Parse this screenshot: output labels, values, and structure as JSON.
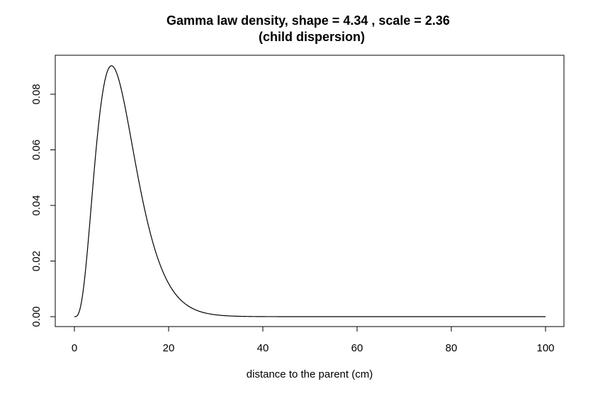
{
  "chart_data": {
    "type": "line",
    "title": "Gamma law density, shape =  4.34 , scale =  2.36",
    "subtitle": "(child dispersion)",
    "xlabel": "distance to the parent (cm)",
    "ylabel": "",
    "xlim": [
      0,
      100
    ],
    "ylim": [
      0,
      0.09
    ],
    "x_ticks": [
      0,
      20,
      40,
      60,
      80,
      100
    ],
    "x_tick_labels": [
      "0",
      "20",
      "40",
      "60",
      "80",
      "100"
    ],
    "y_ticks": [
      0.0,
      0.02,
      0.04,
      0.06,
      0.08
    ],
    "y_tick_labels": [
      "0.00",
      "0.02",
      "0.04",
      "0.06",
      "0.08"
    ],
    "grid": false,
    "legend": "none",
    "line_color": "#000000",
    "distribution": {
      "family": "gamma",
      "shape": 4.34,
      "scale": 2.36
    },
    "series": [
      {
        "x": [
          0,
          1,
          2,
          3,
          4,
          5,
          6,
          7,
          8,
          9,
          10,
          12,
          14,
          16,
          18,
          20,
          22,
          25,
          28,
          30,
          35,
          40,
          50,
          60,
          70,
          80,
          90,
          100
        ],
        "y": [
          0,
          0.0016,
          0.0134,
          0.0356,
          0.0593,
          0.0771,
          0.0866,
          0.0898,
          0.0877,
          0.0816,
          0.0737,
          0.056,
          0.0396,
          0.0265,
          0.0172,
          0.0108,
          0.0066,
          0.003,
          0.0013,
          0.0007,
          0.0001,
          0.0,
          0,
          0,
          0,
          0,
          0,
          0
        ]
      }
    ]
  }
}
